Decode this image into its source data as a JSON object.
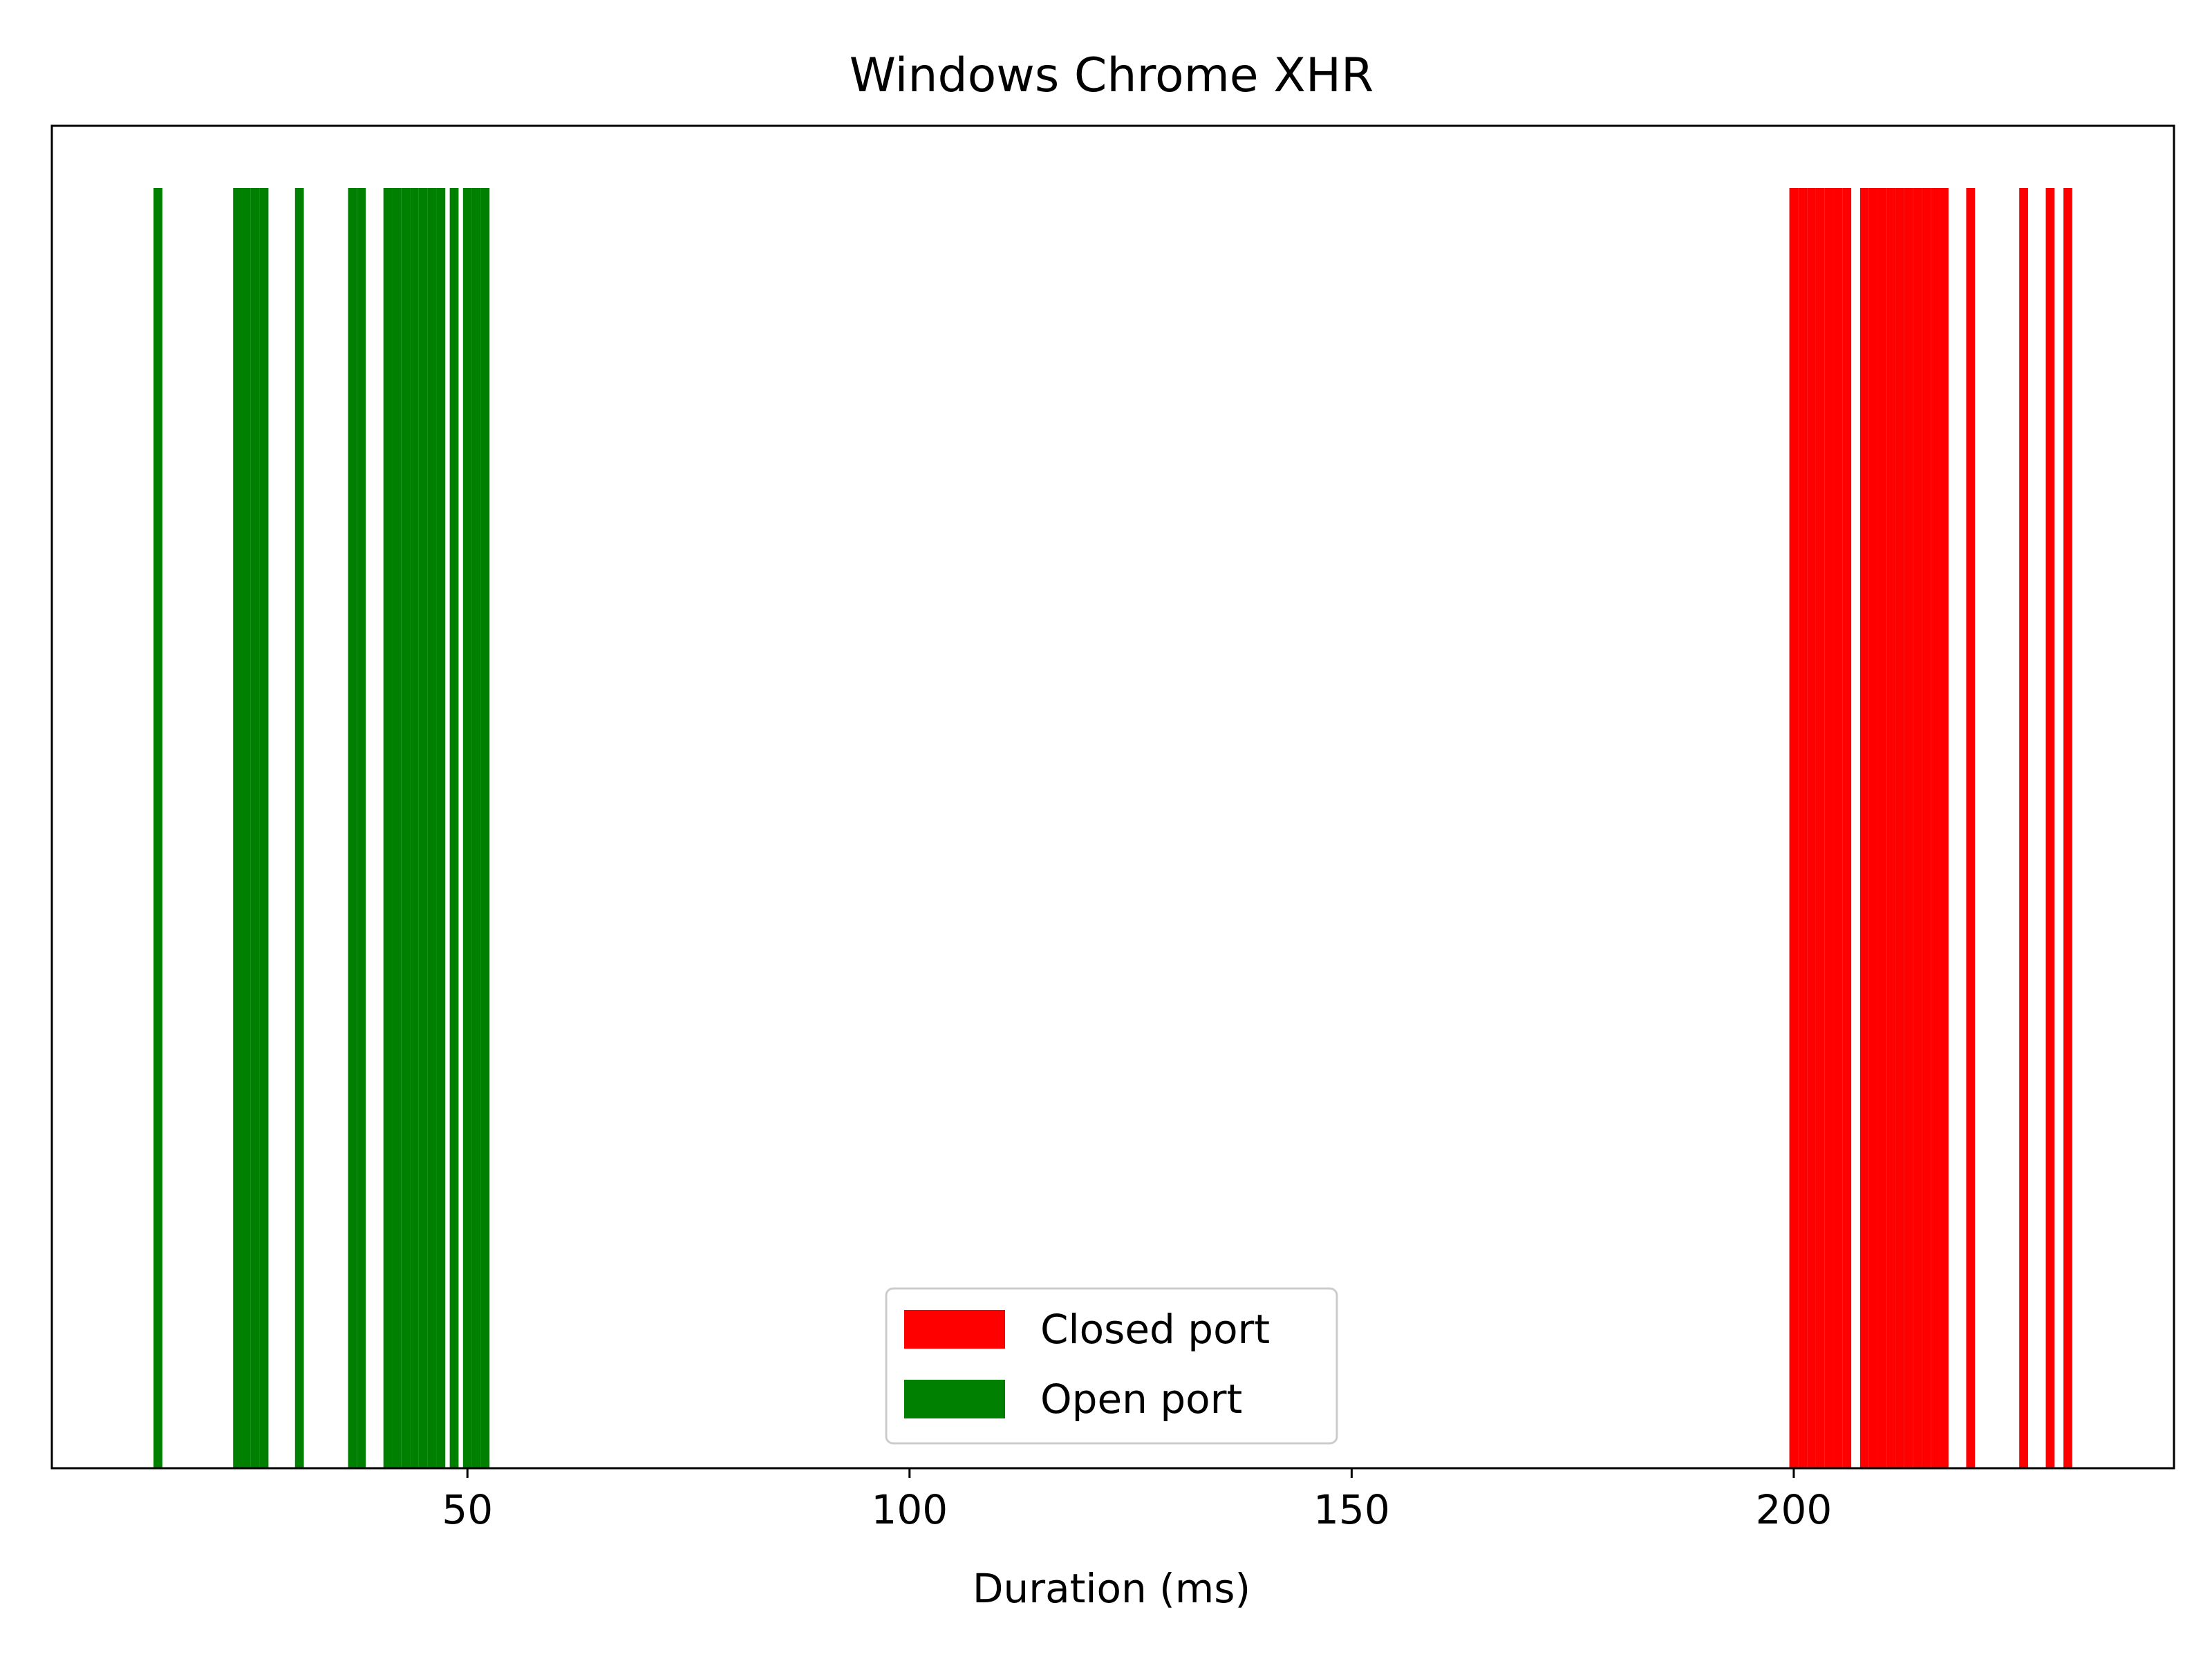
{
  "chart_data": {
    "type": "bar",
    "title": "Windows Chrome XHR",
    "xlabel": "Duration (ms)",
    "ylabel": "",
    "xlim": [
      3.0,
      243.0
    ],
    "x_ticks": [
      {
        "value": 50,
        "label": "50"
      },
      {
        "value": 100,
        "label": "100"
      },
      {
        "value": 150,
        "label": "150"
      },
      {
        "value": 200,
        "label": "200"
      }
    ],
    "y_ticks_visible": false,
    "grid": false,
    "legend_position": "bottom-center",
    "bar_height": 1,
    "series": [
      {
        "name": "Closed port",
        "color": "#ff0000",
        "bar_width": 1.0,
        "values": [
          200,
          201,
          202,
          203,
          204,
          205,
          206,
          208,
          209,
          210,
          211,
          212,
          213,
          214,
          215,
          216,
          217,
          220,
          226,
          229,
          231
        ]
      },
      {
        "name": "Open port",
        "color": "#008000",
        "bar_width": 1.0,
        "values": [
          15,
          24,
          25,
          26,
          27,
          31,
          37,
          38,
          41,
          42,
          43,
          44,
          45,
          46,
          47,
          48.5,
          50,
          51,
          52
        ]
      }
    ]
  }
}
